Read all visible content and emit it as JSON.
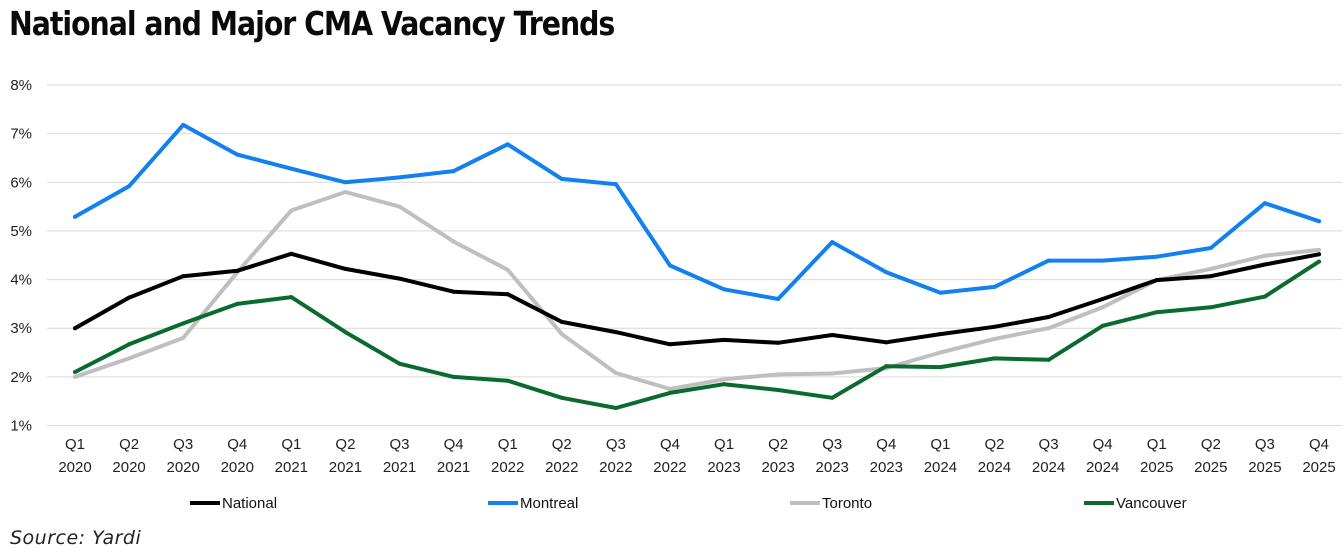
{
  "title": "National and Major CMA Vacancy Trends",
  "source": "Source: Yardi",
  "chart_data": {
    "type": "line",
    "title": "National and Major CMA Vacancy Trends",
    "xlabel": "",
    "ylabel": "",
    "ylim": [
      1,
      8
    ],
    "yticks": [
      "1%",
      "2%",
      "3%",
      "4%",
      "5%",
      "6%",
      "7%",
      "8%"
    ],
    "ytick_values": [
      1,
      2,
      3,
      4,
      5,
      6,
      7,
      8
    ],
    "grid": true,
    "legend_position": "bottom",
    "categories": [
      {
        "q": "Q1",
        "y": "2020"
      },
      {
        "q": "Q2",
        "y": "2020"
      },
      {
        "q": "Q3",
        "y": "2020"
      },
      {
        "q": "Q4",
        "y": "2020"
      },
      {
        "q": "Q1",
        "y": "2021"
      },
      {
        "q": "Q2",
        "y": "2021"
      },
      {
        "q": "Q3",
        "y": "2021"
      },
      {
        "q": "Q4",
        "y": "2021"
      },
      {
        "q": "Q1",
        "y": "2022"
      },
      {
        "q": "Q2",
        "y": "2022"
      },
      {
        "q": "Q3",
        "y": "2022"
      },
      {
        "q": "Q4",
        "y": "2022"
      },
      {
        "q": "Q1",
        "y": "2023"
      },
      {
        "q": "Q2",
        "y": "2023"
      },
      {
        "q": "Q3",
        "y": "2023"
      },
      {
        "q": "Q4",
        "y": "2023"
      },
      {
        "q": "Q1",
        "y": "2024"
      },
      {
        "q": "Q2",
        "y": "2024"
      },
      {
        "q": "Q3",
        "y": "2024"
      },
      {
        "q": "Q4",
        "y": "2024"
      },
      {
        "q": "Q1",
        "y": "2025"
      },
      {
        "q": "Q2",
        "y": "2025"
      },
      {
        "q": "Q3",
        "y": "2025"
      },
      {
        "q": "Q4",
        "y": "2025"
      }
    ],
    "series": [
      {
        "name": "National",
        "color": "#000000",
        "values": [
          3.0,
          3.63,
          4.07,
          4.18,
          4.53,
          4.22,
          4.02,
          3.75,
          3.7,
          3.13,
          2.92,
          2.67,
          2.76,
          2.7,
          2.86,
          2.71,
          2.88,
          3.03,
          3.23,
          3.6,
          3.99,
          4.07,
          4.31,
          4.52
        ]
      },
      {
        "name": "Montreal",
        "color": "#1380F0",
        "values": [
          5.29,
          5.92,
          7.18,
          6.57,
          6.28,
          6.0,
          6.1,
          6.23,
          6.78,
          6.07,
          5.96,
          4.29,
          3.8,
          3.6,
          4.77,
          4.15,
          3.73,
          3.85,
          4.39,
          4.39,
          4.47,
          4.65,
          5.57,
          5.2
        ]
      },
      {
        "name": "Toronto",
        "color": "#BFBFBF",
        "values": [
          2.0,
          2.38,
          2.8,
          4.15,
          5.42,
          5.8,
          5.5,
          4.78,
          4.2,
          2.88,
          2.08,
          1.75,
          1.95,
          2.05,
          2.07,
          2.18,
          2.5,
          2.78,
          3.0,
          3.43,
          3.99,
          4.22,
          4.49,
          4.61
        ]
      },
      {
        "name": "Vancouver",
        "color": "#0B6B2E",
        "values": [
          2.1,
          2.67,
          3.1,
          3.5,
          3.64,
          2.92,
          2.27,
          2.0,
          1.92,
          1.57,
          1.36,
          1.67,
          1.85,
          1.73,
          1.57,
          2.22,
          2.2,
          2.38,
          2.35,
          3.05,
          3.33,
          3.43,
          3.65,
          4.37
        ]
      }
    ]
  }
}
